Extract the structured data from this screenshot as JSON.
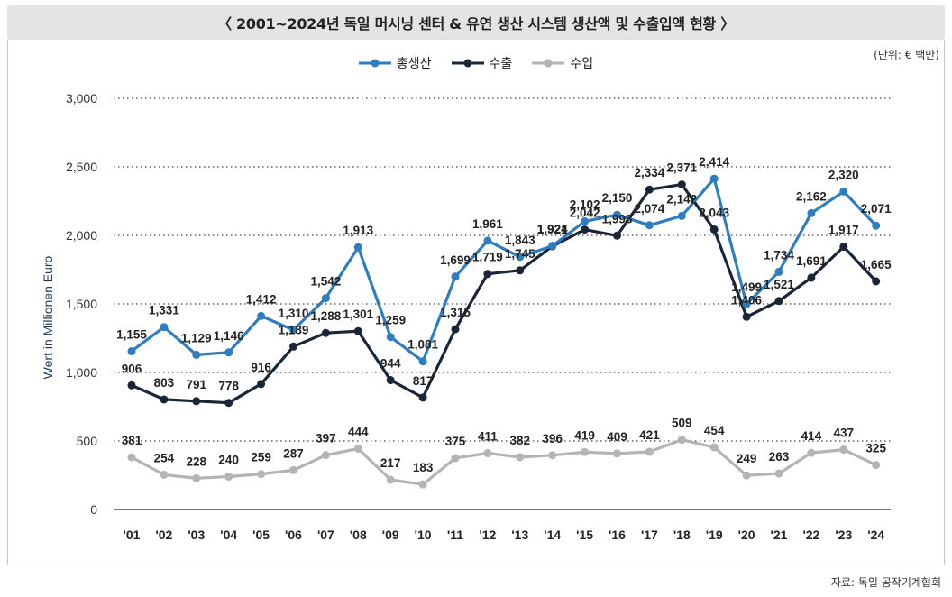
{
  "title": "〈 2001~2024년 독일 머시닝 센터 & 유연 생산 시스템 생산액 및 수출입액 현황 〉",
  "unit_note": "(단위: € 백만)",
  "source": "자료: 독일 공작기계협회",
  "legend_items": [
    {
      "label": "총생산",
      "color": "#2e7dc0"
    },
    {
      "label": "수출",
      "color": "#1a2638"
    },
    {
      "label": "수입",
      "color": "#b4b4b4"
    }
  ],
  "chart_data": {
    "type": "line",
    "title": "〈 2001~2024년 독일 머시닝 센터 & 유연 생산 시스템 생산액 및 수출입액 현황 〉",
    "xlabel": "",
    "ylabel": "Wert in Millionen Euro",
    "ylim": [
      0,
      3000
    ],
    "yticks": [
      0,
      500,
      1000,
      1500,
      2000,
      2500,
      3000
    ],
    "ytick_labels": [
      "0",
      "500",
      "1,000",
      "1,500",
      "2,000",
      "2,500",
      "3,000"
    ],
    "grid": true,
    "legend_position": "top-center",
    "categories": [
      "'01",
      "'02",
      "'03",
      "'04",
      "'05",
      "'06",
      "'07",
      "'08",
      "'09",
      "'10",
      "'11",
      "'12",
      "'13",
      "'14",
      "'15",
      "'16",
      "'17",
      "'18",
      "'19",
      "'20",
      "'21",
      "'22",
      "'23",
      "'24"
    ],
    "series": [
      {
        "name": "총생산",
        "color": "#2e7dc0",
        "values": [
          1155,
          1331,
          1129,
          1146,
          1412,
          1310,
          1542,
          1913,
          1259,
          1081,
          1699,
          1961,
          1843,
          1924,
          2102,
          2150,
          2074,
          2142,
          2414,
          1499,
          1734,
          2162,
          2320,
          2071
        ],
        "labels": [
          "1,155",
          "1,331",
          "1,129",
          "1,146",
          "1,412",
          "1,310",
          "1,542",
          "1,913",
          "1,259",
          "1,081",
          "1,699",
          "1,961",
          "1,843",
          "1,924",
          "2,102",
          "2,150",
          "2,074",
          "2,142",
          "2,414",
          "1,499",
          "1,734",
          "2,162",
          "2,320",
          "2,071"
        ]
      },
      {
        "name": "수출",
        "color": "#1a2638",
        "values": [
          906,
          803,
          791,
          778,
          916,
          1189,
          1288,
          1301,
          944,
          817,
          1315,
          1719,
          1745,
          1921,
          2042,
          1998,
          2334,
          2371,
          2043,
          1406,
          1521,
          1691,
          1917,
          1665
        ],
        "labels": [
          "906",
          "803",
          "791",
          "778",
          "916",
          "1,189",
          "1,288",
          "1,301",
          "944",
          "817",
          "1,315",
          "1,719",
          "1,745",
          "1,921",
          "2,042",
          "1,998",
          "2,334",
          "2,371",
          "2,043",
          "1,406",
          "1,521",
          "1,691",
          "1,917",
          "1,665"
        ]
      },
      {
        "name": "수입",
        "color": "#b4b4b4",
        "values": [
          381,
          254,
          228,
          240,
          259,
          287,
          397,
          444,
          217,
          183,
          375,
          411,
          382,
          396,
          419,
          409,
          421,
          509,
          454,
          249,
          263,
          414,
          437,
          325
        ],
        "labels": [
          "381",
          "254",
          "228",
          "240",
          "259",
          "287",
          "397",
          "444",
          "217",
          "183",
          "375",
          "411",
          "382",
          "396",
          "419",
          "409",
          "421",
          "509",
          "454",
          "249",
          "263",
          "414",
          "437",
          "325"
        ]
      }
    ]
  }
}
